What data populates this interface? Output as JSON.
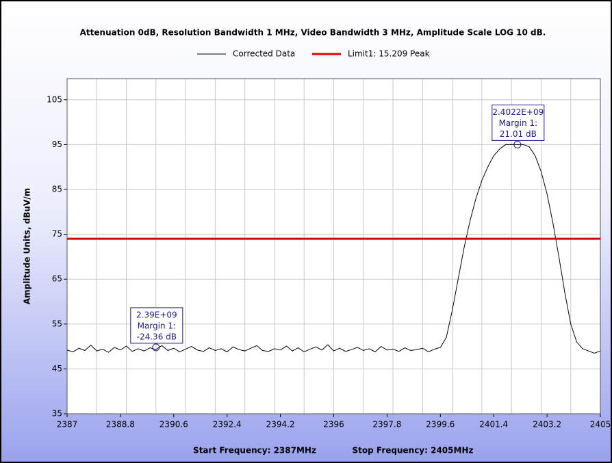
{
  "chart_data": {
    "type": "line",
    "title": "Attenuation 0dB, Resolution Bandwidth 1 MHz, Video Bandwidth 3 MHz, Amplitude Scale LOG 10 dB.",
    "ylabel": "Amplitude Units, dBuV/m",
    "footer": [
      "Start Frequency: 2387MHz",
      "Stop Frequency: 2405MHz"
    ],
    "xlim": [
      2387,
      2405
    ],
    "ylim": [
      35,
      109.7
    ],
    "xticks": [
      2387,
      2388.8,
      2390.6,
      2392.4,
      2394.2,
      2396,
      2397.8,
      2399.6,
      2401.4,
      2403.2,
      2405
    ],
    "xgrid": [
      2387,
      2388,
      2389,
      2390,
      2391,
      2392,
      2393,
      2394,
      2395,
      2396,
      2397,
      2398,
      2399,
      2400,
      2401,
      2402,
      2403,
      2404,
      2405
    ],
    "yticks": [
      35,
      45,
      55,
      65,
      75,
      85,
      95,
      105
    ],
    "grid": true,
    "x": [
      2387,
      2387.2,
      2387.4,
      2387.6,
      2387.8,
      2388,
      2388.2,
      2388.4,
      2388.6,
      2388.8,
      2389,
      2389.2,
      2389.4,
      2389.6,
      2389.8,
      2390,
      2390.2,
      2390.4,
      2390.6,
      2390.8,
      2391,
      2391.2,
      2391.4,
      2391.6,
      2391.8,
      2392,
      2392.2,
      2392.4,
      2392.6,
      2392.8,
      2393,
      2393.2,
      2393.4,
      2393.6,
      2393.8,
      2394,
      2394.2,
      2394.4,
      2394.6,
      2394.8,
      2395,
      2395.2,
      2395.4,
      2395.6,
      2395.8,
      2396,
      2396.2,
      2396.4,
      2396.6,
      2396.8,
      2397,
      2397.2,
      2397.4,
      2397.6,
      2397.8,
      2398,
      2398.2,
      2398.4,
      2398.6,
      2398.8,
      2399,
      2399.2,
      2399.4,
      2399.6,
      2399.8,
      2400,
      2400.2,
      2400.4,
      2400.6,
      2400.8,
      2401,
      2401.2,
      2401.4,
      2401.6,
      2401.8,
      2402,
      2402.2,
      2402.4,
      2402.6,
      2402.8,
      2403,
      2403.2,
      2403.4,
      2403.6,
      2403.8,
      2404,
      2404.2,
      2404.4,
      2404.6,
      2404.8,
      2405
    ],
    "series": [
      {
        "name": "Corrected Data",
        "color": "#000000",
        "values": [
          49.2,
          48.8,
          49.6,
          49.1,
          50.3,
          49.0,
          49.4,
          48.7,
          49.8,
          49.2,
          50.1,
          48.9,
          49.5,
          49.0,
          49.7,
          49.3,
          50.2,
          49.1,
          49.6,
          48.8,
          49.4,
          50.0,
          49.2,
          48.9,
          49.7,
          49.1,
          49.5,
          48.8,
          49.9,
          49.3,
          49.0,
          49.6,
          50.2,
          49.1,
          48.9,
          49.5,
          49.2,
          50.1,
          49.0,
          49.7,
          48.8,
          49.4,
          49.9,
          49.2,
          50.4,
          49.0,
          49.6,
          48.9,
          49.3,
          49.8,
          49.1,
          49.5,
          48.8,
          50.0,
          49.2,
          49.4,
          48.9,
          49.7,
          49.1,
          49.3,
          49.6,
          48.8,
          49.4,
          49.8,
          52,
          58,
          65,
          72,
          78,
          83,
          87,
          90,
          92.5,
          94,
          95,
          95,
          95,
          95,
          94.5,
          92.5,
          89,
          84,
          77.5,
          70,
          62,
          55,
          51,
          49.5,
          49,
          48.5,
          49
        ]
      },
      {
        "name": "Limit1: 15.209 Peak",
        "color": "#e00000",
        "limit": 74
      }
    ],
    "annotations": [
      {
        "x": 2390.0,
        "y": 49.8,
        "lines": [
          "2.39E+09",
          "Margin 1:",
          "-24.36 dB"
        ]
      },
      {
        "x": 2402.2,
        "y": 95,
        "lines": [
          "2.4022E+09",
          "Margin 1:",
          "21.01 dB"
        ]
      }
    ]
  }
}
